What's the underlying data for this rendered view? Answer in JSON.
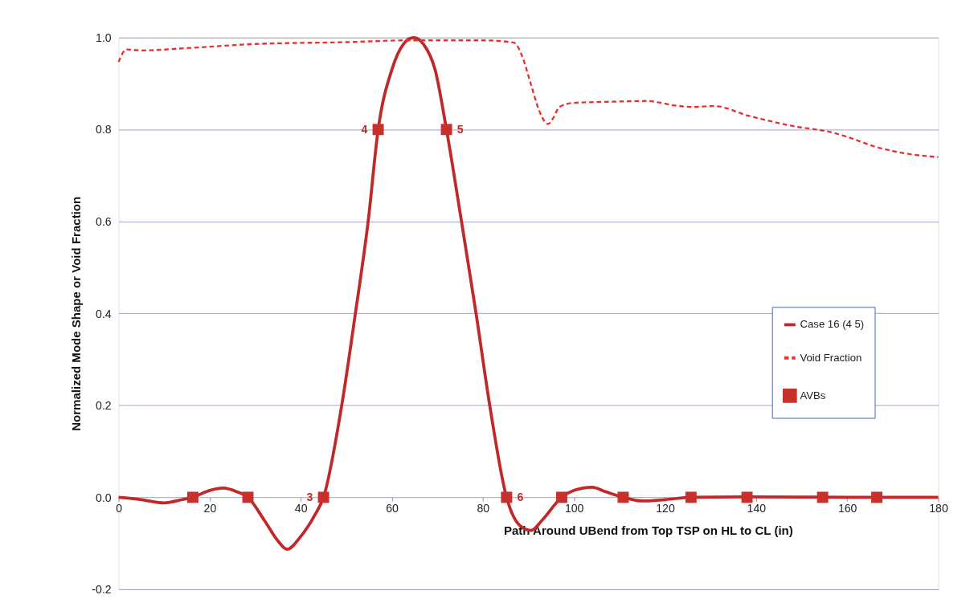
{
  "chart_data": {
    "type": "line",
    "xlabel": "Path Around UBend from Top TSP on HL to CL (in)",
    "ylabel": "Normalized Mode Shape or Void Fraction",
    "xlim": [
      0,
      180
    ],
    "xticks": [
      0,
      20,
      40,
      60,
      80,
      100,
      120,
      140,
      160,
      180
    ],
    "ylim": [
      -0.2,
      1.0
    ],
    "yticks": [
      {
        "value": -0.2,
        "label": "-0.2"
      },
      {
        "value": 0,
        "label": "0.0"
      },
      {
        "value": 0.2,
        "label": "0.2"
      },
      {
        "value": 0.4,
        "label": "0.4"
      },
      {
        "value": 0.6,
        "label": "0.6"
      },
      {
        "value": 0.8,
        "label": "0.8"
      },
      {
        "value": 1.0,
        "label": "1.0"
      }
    ],
    "grid": "y",
    "legend": "right",
    "series": [
      {
        "name": "Case 16 (4 5)",
        "color": "#c0282a",
        "line_style": "solid",
        "marker": "none",
        "x": [
          0,
          5,
          10,
          14,
          16.3,
          20,
          23,
          26,
          28.4,
          32,
          35,
          37,
          40,
          43,
          45,
          49,
          52,
          54.8,
          57,
          60,
          62.5,
          64.8,
          67,
          69.5,
          72,
          75.3,
          78.5,
          81.5,
          85.2,
          88,
          90.6,
          93,
          97.3,
          100,
          104,
          107,
          110.8,
          115,
          120,
          125.7,
          140,
          160,
          180
        ],
        "values": [
          0,
          -0.005,
          -0.012,
          -0.005,
          0,
          0.015,
          0.02,
          0.012,
          0,
          -0.05,
          -0.095,
          -0.113,
          -0.085,
          -0.04,
          0,
          0.2,
          0.4,
          0.6,
          0.8,
          0.93,
          0.985,
          1.0,
          0.985,
          0.93,
          0.8,
          0.6,
          0.4,
          0.2,
          0,
          -0.06,
          -0.072,
          -0.05,
          0,
          0.015,
          0.022,
          0.012,
          0,
          -0.008,
          -0.005,
          0,
          0.001,
          0,
          0
        ]
      },
      {
        "name": "Void Fraction",
        "color": "#e8322f",
        "line_style": "dashed",
        "marker": "none",
        "x": [
          0,
          1.7,
          5,
          15,
          30,
          50,
          64,
          80,
          86.8,
          88.6,
          90.5,
          92.4,
          94.3,
          95.5,
          96.8,
          100,
          106.4,
          116,
          122.4,
          126.2,
          130.7,
          138.3,
          147.8,
          157.3,
          160.6,
          165.7,
          173.4,
          180
        ],
        "values": [
          0.947,
          0.974,
          0.972,
          0.977,
          0.986,
          0.99,
          0.994,
          0.994,
          0.989,
          0.96,
          0.9,
          0.84,
          0.812,
          0.826,
          0.849,
          0.858,
          0.86,
          0.862,
          0.852,
          0.849,
          0.851,
          0.83,
          0.808,
          0.792,
          0.782,
          0.764,
          0.747,
          0.74
        ]
      },
      {
        "name": "AVBs",
        "type": "scatter",
        "color": "#c9302c",
        "marker": "square",
        "x": [
          16.3,
          28.4,
          45,
          57,
          72,
          85.2,
          97.3,
          110.8,
          125.7,
          138,
          154.6,
          166.5
        ],
        "values": [
          0,
          0,
          0,
          0.8,
          0.8,
          0,
          0,
          0,
          0,
          0,
          0,
          0
        ]
      }
    ],
    "annotations": [
      {
        "text": "3",
        "x": 45,
        "y": 0
      },
      {
        "text": "4",
        "x": 57,
        "y": 0.8
      },
      {
        "text": "5",
        "x": 72,
        "y": 0.8
      },
      {
        "text": "6",
        "x": 85.2,
        "y": 0
      }
    ]
  }
}
